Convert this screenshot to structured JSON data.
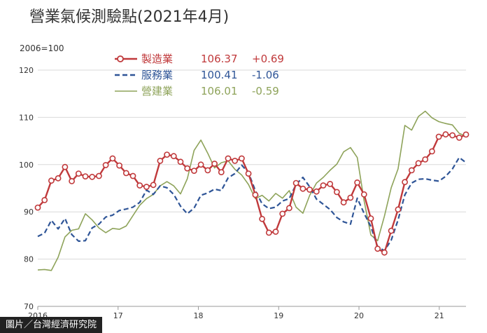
{
  "title": "營業氣候測驗點(2021年4月)",
  "credit": "圖片／台灣經濟研究院",
  "chart_data": {
    "type": "line",
    "baseline_label": "2006=100",
    "ylim": [
      70,
      120
    ],
    "yticks": [
      70,
      80,
      90,
      100,
      110,
      120
    ],
    "x_start": 2016.0,
    "x_end": 2021.333,
    "xticks": [
      {
        "label": "2016",
        "x": 2016.0
      },
      {
        "label": "17",
        "x": 2017.0
      },
      {
        "label": "18",
        "x": 2018.0
      },
      {
        "label": "19",
        "x": 2019.0
      },
      {
        "label": "20",
        "x": 2020.0
      },
      {
        "label": "21",
        "x": 2021.0
      }
    ],
    "grid": true,
    "legend_position": "top-left",
    "series": [
      {
        "name": "製造業",
        "color": "#c0393b",
        "style": "solid-marker",
        "latest": "106.37",
        "change": "+0.69",
        "values": [
          90.9,
          92.5,
          96.6,
          97.1,
          99.5,
          96.5,
          98.1,
          97.5,
          97.4,
          97.6,
          99.9,
          101.3,
          99.8,
          98.2,
          97.6,
          95.6,
          95.3,
          95.7,
          100.8,
          102.1,
          101.8,
          100.6,
          99.2,
          98.7,
          100.0,
          98.8,
          100.2,
          98.4,
          101.3,
          100.8,
          101.3,
          98.1,
          93.6,
          88.5,
          85.6,
          85.8,
          89.6,
          90.8,
          96.1,
          94.9,
          94.7,
          94.3,
          95.6,
          95.9,
          94.2,
          92.0,
          93.0,
          96.2,
          93.7,
          88.6,
          82.2,
          81.4,
          86.0,
          90.5,
          96.3,
          98.8,
          100.3,
          101.1,
          102.8,
          105.9,
          106.4,
          106.2,
          105.7,
          106.37
        ]
      },
      {
        "name": "服務業",
        "color": "#2f5597",
        "style": "dashed",
        "latest": "100.41",
        "change": "-1.06",
        "values": [
          84.8,
          85.5,
          88.2,
          86.4,
          88.6,
          85.2,
          83.8,
          83.9,
          86.6,
          87.4,
          88.9,
          89.3,
          90.3,
          90.6,
          91.0,
          92.0,
          94.6,
          93.7,
          95.5,
          95.1,
          93.7,
          91.2,
          89.6,
          90.8,
          93.5,
          94.0,
          94.8,
          94.5,
          97.2,
          98.1,
          99.9,
          98.3,
          94.5,
          91.7,
          90.7,
          91.0,
          92.3,
          92.8,
          95.8,
          97.3,
          95.3,
          92.7,
          91.6,
          90.5,
          88.8,
          87.9,
          87.4,
          92.9,
          89.7,
          86.9,
          82.6,
          81.8,
          84.0,
          88.3,
          93.6,
          96.1,
          96.9,
          97.0,
          96.7,
          96.5,
          97.5,
          99.1,
          101.5,
          100.41
        ]
      },
      {
        "name": "營建業",
        "color": "#8ea35a",
        "style": "solid",
        "latest": "106.01",
        "change": "-0.59",
        "values": [
          77.7,
          77.8,
          77.6,
          80.4,
          84.7,
          86.1,
          86.4,
          89.6,
          88.3,
          86.6,
          85.6,
          86.5,
          86.3,
          87.0,
          89.2,
          91.4,
          92.8,
          93.7,
          95.5,
          96.4,
          95.5,
          93.8,
          97.0,
          103.0,
          105.2,
          102.4,
          99.3,
          100.4,
          100.8,
          99.0,
          97.8,
          95.8,
          92.8,
          93.5,
          92.3,
          93.9,
          92.9,
          94.5,
          91.0,
          89.7,
          93.5,
          96.1,
          97.3,
          98.8,
          100.1,
          102.7,
          103.6,
          101.5,
          92.4,
          85.1,
          83.9,
          89.1,
          95.1,
          99.1,
          108.3,
          107.3,
          110.2,
          111.3,
          109.9,
          109.1,
          108.7,
          108.4,
          106.6,
          106.01
        ]
      }
    ]
  }
}
